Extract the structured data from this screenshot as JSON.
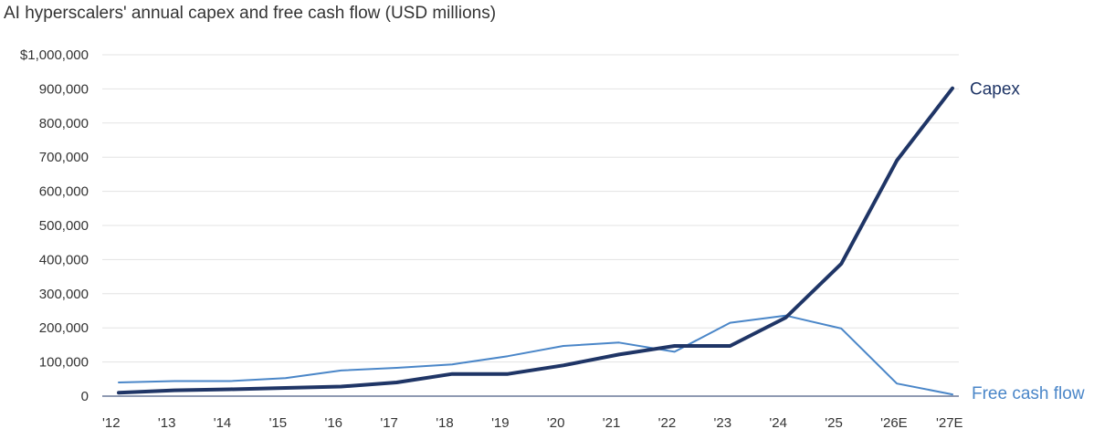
{
  "chart_data": {
    "type": "line",
    "title": "AI hyperscalers' annual capex and free cash flow (USD millions)",
    "categories": [
      "'12",
      "'13",
      "'14",
      "'15",
      "'16",
      "'17",
      "'18",
      "'19",
      "'20",
      "'21",
      "'22",
      "'23",
      "'24",
      "'25",
      "'26E",
      "'27E"
    ],
    "y_tick_labels": [
      "0",
      "100,000",
      "200,000",
      "300,000",
      "400,000",
      "500,000",
      "600,000",
      "700,000",
      "800,000",
      "900,000",
      "$1,000,000"
    ],
    "y_tick_values": [
      0,
      100000,
      200000,
      300000,
      400000,
      500000,
      600000,
      700000,
      800000,
      900000,
      1000000
    ],
    "ylim": [
      0,
      1000000
    ],
    "grid": true,
    "legend": "inline labels at line ends",
    "series": [
      {
        "name": "Capex",
        "color": "#1f3566",
        "values": [
          10000,
          17000,
          20000,
          24000,
          28000,
          40000,
          65000,
          65000,
          90000,
          122000,
          147000,
          147000,
          230000,
          388000,
          690000,
          902000
        ]
      },
      {
        "name": "Free cash flow",
        "color": "#4a86c8",
        "values": [
          40000,
          44000,
          44000,
          53000,
          75000,
          83000,
          93000,
          117000,
          147000,
          157000,
          130000,
          215000,
          236000,
          198000,
          37000,
          5000
        ]
      }
    ]
  }
}
